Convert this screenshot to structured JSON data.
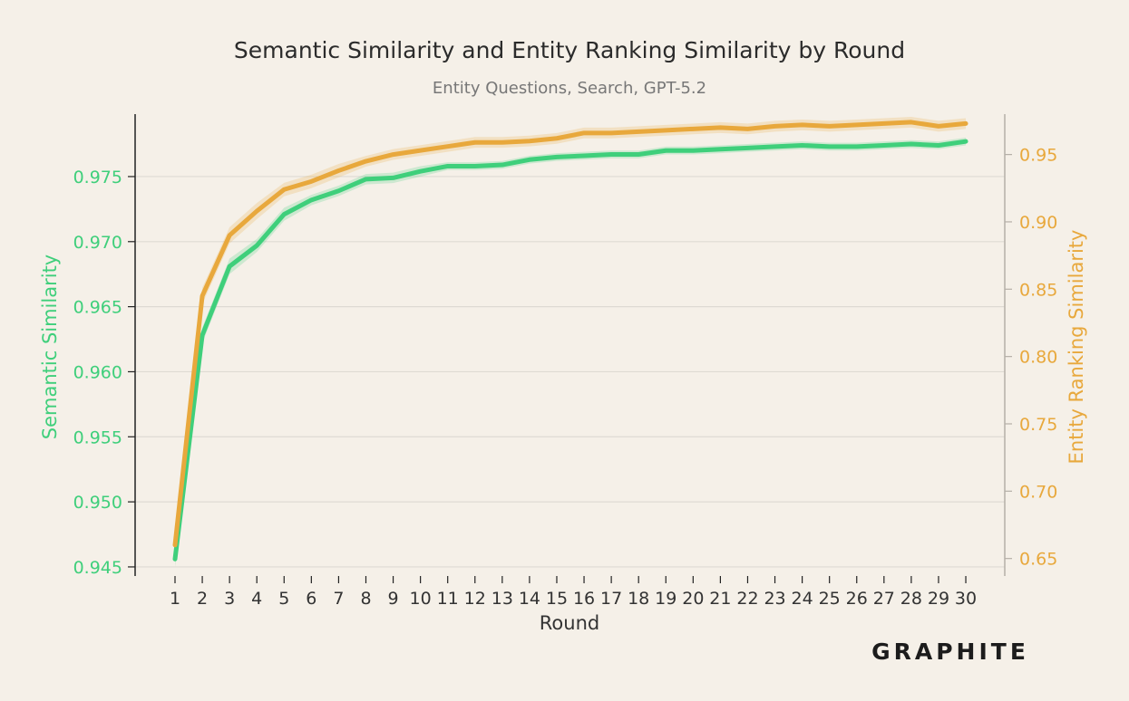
{
  "colors": {
    "background": "#f5f0e8",
    "semantic": "#3fcf7b",
    "entity": "#e8a83c",
    "grid": "#dedad3",
    "axis": "#222222",
    "right_axis": "#b5b0a8"
  },
  "logo_text": "GRAPHITE",
  "chart_data": {
    "type": "line",
    "title": "Semantic Similarity and Entity Ranking Similarity by Round",
    "subtitle": "Entity Questions, Search, GPT-5.2",
    "xlabel": "Round",
    "ylabel_left": "Semantic Similarity",
    "ylabel_right": "Entity Ranking Similarity",
    "x": [
      1,
      2,
      3,
      4,
      5,
      6,
      7,
      8,
      9,
      10,
      11,
      12,
      13,
      14,
      15,
      16,
      17,
      18,
      19,
      20,
      21,
      22,
      23,
      24,
      25,
      26,
      27,
      28,
      29,
      30
    ],
    "x_ticks": [
      "1",
      "2",
      "3",
      "4",
      "5",
      "6",
      "7",
      "8",
      "9",
      "10",
      "11",
      "12",
      "13",
      "14",
      "15",
      "16",
      "17",
      "18",
      "19",
      "20",
      "21",
      "22",
      "23",
      "24",
      "25",
      "26",
      "27",
      "28",
      "29",
      "30"
    ],
    "y_left_ticks": [
      "0.945",
      "0.950",
      "0.955",
      "0.960",
      "0.965",
      "0.970",
      "0.975"
    ],
    "y_left_tick_values": [
      0.945,
      0.95,
      0.955,
      0.96,
      0.965,
      0.97,
      0.975
    ],
    "y_right_ticks": [
      "0.65",
      "0.70",
      "0.75",
      "0.80",
      "0.85",
      "0.90",
      "0.95"
    ],
    "y_right_tick_values": [
      0.65,
      0.7,
      0.75,
      0.8,
      0.85,
      0.9,
      0.95
    ],
    "ylim_left": [
      0.9443,
      0.9798
    ],
    "ylim_right": [
      0.637,
      0.98
    ],
    "grid": true,
    "series": [
      {
        "name": "Semantic Similarity",
        "axis": "left",
        "values": [
          0.9456,
          0.9628,
          0.9681,
          0.9697,
          0.9721,
          0.9732,
          0.9739,
          0.9748,
          0.9749,
          0.9754,
          0.9758,
          0.9758,
          0.9759,
          0.9763,
          0.9765,
          0.9766,
          0.9767,
          0.9767,
          0.977,
          0.977,
          0.9771,
          0.9772,
          0.9773,
          0.9774,
          0.9773,
          0.9773,
          0.9774,
          0.9775,
          0.9774,
          0.9777
        ],
        "band": [
          0.0006,
          0.0006,
          0.0006,
          0.0005,
          0.0005,
          0.0004,
          0.0004,
          0.0004,
          0.0004,
          0.0004,
          0.0003,
          0.0003,
          0.0003,
          0.0003,
          0.0003,
          0.0003,
          0.0003,
          0.0003,
          0.0003,
          0.0003,
          0.0003,
          0.0003,
          0.0003,
          0.0003,
          0.0003,
          0.0003,
          0.0003,
          0.0003,
          0.0003,
          0.0003
        ]
      },
      {
        "name": "Entity Ranking Similarity",
        "axis": "right",
        "values": [
          0.66,
          0.845,
          0.89,
          0.908,
          0.924,
          0.93,
          0.938,
          0.945,
          0.95,
          0.953,
          0.956,
          0.959,
          0.959,
          0.96,
          0.962,
          0.966,
          0.966,
          0.967,
          0.968,
          0.969,
          0.97,
          0.969,
          0.971,
          0.972,
          0.971,
          0.972,
          0.973,
          0.974,
          0.971,
          0.973
        ],
        "band": [
          0.006,
          0.006,
          0.006,
          0.006,
          0.005,
          0.005,
          0.005,
          0.004,
          0.004,
          0.004,
          0.004,
          0.004,
          0.004,
          0.004,
          0.004,
          0.004,
          0.004,
          0.004,
          0.004,
          0.004,
          0.004,
          0.004,
          0.004,
          0.004,
          0.004,
          0.004,
          0.004,
          0.004,
          0.004,
          0.004
        ]
      }
    ]
  }
}
